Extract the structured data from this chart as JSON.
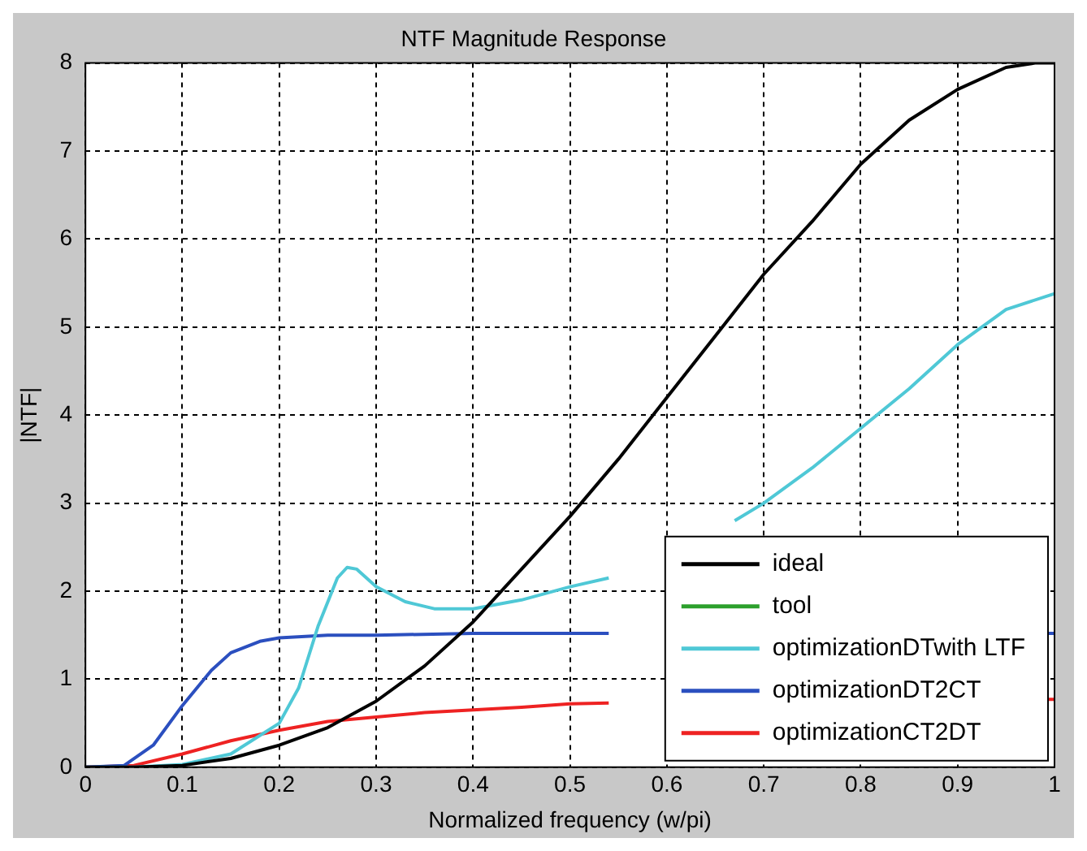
{
  "chart_data": {
    "type": "line",
    "title": "NTF Magnitude Response",
    "xlabel": "Normalized frequency (w/pi)",
    "ylabel": "|NTF|",
    "xlim": [
      0,
      1
    ],
    "xticks": [
      0,
      0.1,
      0.2,
      0.3,
      0.4,
      0.5,
      0.6,
      0.7,
      0.8,
      0.9,
      1
    ],
    "ylim": [
      0,
      8
    ],
    "yticks": [
      0,
      1,
      2,
      3,
      4,
      5,
      6,
      7,
      8
    ],
    "grid": true,
    "legend": "bottom right",
    "marker": "none",
    "line_style": "solid",
    "series": [
      {
        "name": "ideal",
        "color": "#000000",
        "x": [
          0,
          0.05,
          0.1,
          0.15,
          0.2,
          0.25,
          0.3,
          0.35,
          0.4,
          0.45,
          0.5,
          0.55,
          0.6,
          0.65,
          0.7,
          0.75,
          0.8,
          0.85,
          0.9,
          0.95,
          0.98,
          1
        ],
        "values": [
          0,
          0,
          0.02,
          0.1,
          0.25,
          0.45,
          0.75,
          1.15,
          1.65,
          2.25,
          2.85,
          3.5,
          4.2,
          4.9,
          5.6,
          6.2,
          6.85,
          7.35,
          7.7,
          7.95,
          8,
          8
        ]
      },
      {
        "name": "tool",
        "color": "#2ca02c"
      },
      {
        "name": "optimizationDTwith LTF",
        "color": "#4fc8d6",
        "x": [
          0,
          0.05,
          0.1,
          0.15,
          0.2,
          0.22,
          0.24,
          0.26,
          0.27,
          0.28,
          0.3,
          0.33,
          0.36,
          0.4,
          0.45,
          0.5,
          0.54,
          0.6,
          0.67,
          0.7,
          0.75,
          0.8,
          0.85,
          0.9,
          0.95,
          1
        ],
        "values": [
          0,
          0,
          0.03,
          0.15,
          0.5,
          0.9,
          1.6,
          2.15,
          2.27,
          2.25,
          2.05,
          1.88,
          1.8,
          1.8,
          1.9,
          2.05,
          2.15,
          null,
          2.8,
          3,
          3.4,
          3.85,
          4.3,
          4.8,
          5.2,
          5.38
        ]
      },
      {
        "name": "optimizationDT2CT",
        "color": "#2b4fbf",
        "x": [
          0,
          0.04,
          0.07,
          0.1,
          0.13,
          0.15,
          0.18,
          0.2,
          0.25,
          0.3,
          0.4,
          0.5,
          0.54,
          0.7,
          0.99,
          1
        ],
        "values": [
          0,
          0.02,
          0.25,
          0.7,
          1.1,
          1.3,
          1.43,
          1.47,
          1.5,
          1.5,
          1.52,
          1.52,
          1.52,
          null,
          1.52,
          1.52
        ]
      },
      {
        "name": "optimizationCT2DT",
        "color": "#ee2222",
        "x": [
          0,
          0.05,
          0.1,
          0.15,
          0.2,
          0.25,
          0.3,
          0.35,
          0.4,
          0.45,
          0.5,
          0.54,
          0.7,
          0.99,
          1
        ],
        "values": [
          0,
          0.02,
          0.15,
          0.3,
          0.42,
          0.52,
          0.57,
          0.62,
          0.65,
          0.68,
          0.72,
          0.73,
          null,
          0.77,
          0.77
        ]
      }
    ]
  }
}
